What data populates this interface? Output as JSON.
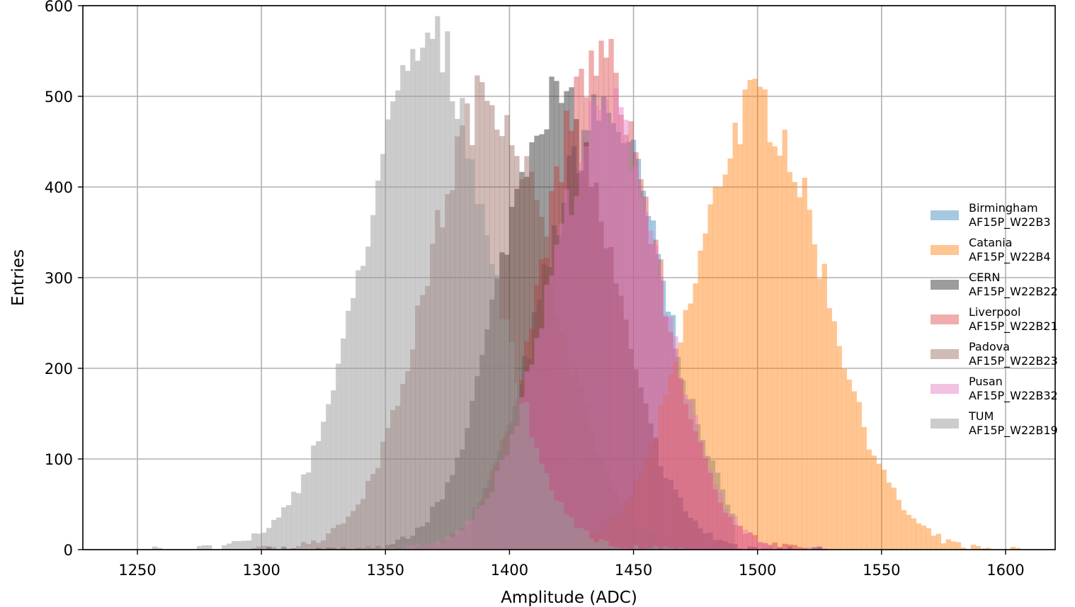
{
  "chart_data": {
    "type": "bar",
    "xlabel": "Amplitude (ADC)",
    "ylabel": "Entries",
    "xlim": [
      1228,
      1620
    ],
    "ylim": [
      0,
      600
    ],
    "xticks": [
      1250,
      1300,
      1350,
      1400,
      1450,
      1500,
      1550,
      1600
    ],
    "yticks": [
      0,
      100,
      200,
      300,
      400,
      500,
      600
    ],
    "grid": true,
    "legend_position": "center-right",
    "bin_width": 2,
    "series": [
      {
        "name": "Birmingham\nAF15P_W22B3",
        "color": "#1f77b4",
        "alpha": 0.4,
        "peak_x": 1438,
        "sigma_left": 24,
        "sigma_right": 24,
        "peak": 485,
        "low": 1385,
        "high": 1490
      },
      {
        "name": "Catania\nAF15P_W22B4",
        "color": "#ff7f0e",
        "alpha": 0.45,
        "peak_x": 1500,
        "sigma_left": 25,
        "sigma_right": 27,
        "peak": 492,
        "low": 1400,
        "high": 1605
      },
      {
        "name": "CERN\nAF15P_W22B22",
        "color": "#3a3a3a",
        "alpha": 0.5,
        "peak_x": 1418,
        "sigma_left": 22,
        "sigma_right": 24,
        "peak": 500,
        "low": 1300,
        "high": 1525
      },
      {
        "name": "Liverpool\nAF15P_W22B21",
        "color": "#d62728",
        "alpha": 0.38,
        "peak_x": 1436,
        "sigma_left": 22,
        "sigma_right": 23,
        "peak": 540,
        "low": 1320,
        "high": 1530
      },
      {
        "name": "Padova\nAF15P_W22B23",
        "color": "#8c564b",
        "alpha": 0.4,
        "peak_x": 1392,
        "sigma_left": 25,
        "sigma_right": 25,
        "peak": 500,
        "low": 1290,
        "high": 1510
      },
      {
        "name": "Pusan\nAF15P_W22B32",
        "color": "#e377c2",
        "alpha": 0.45,
        "peak_x": 1440,
        "sigma_left": 24,
        "sigma_right": 22,
        "peak": 482,
        "low": 1340,
        "high": 1525
      },
      {
        "name": "TUM\nAF15P_W22B19",
        "color": "#9a9a9a",
        "alpha": 0.5,
        "peak_x": 1368,
        "sigma_left": 26,
        "sigma_right": 24,
        "peak": 558,
        "low": 1250,
        "high": 1470
      }
    ]
  }
}
